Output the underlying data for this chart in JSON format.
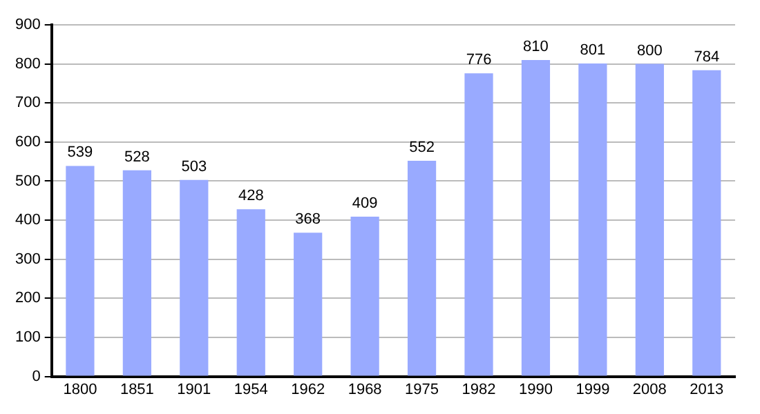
{
  "chart_data": {
    "type": "bar",
    "categories": [
      "1800",
      "1851",
      "1901",
      "1954",
      "1962",
      "1968",
      "1975",
      "1982",
      "1990",
      "1999",
      "2008",
      "2013"
    ],
    "values": [
      539,
      528,
      503,
      428,
      368,
      409,
      552,
      776,
      810,
      801,
      800,
      784
    ],
    "color": "#99aaff",
    "ylim": [
      0,
      900
    ],
    "yticks": [
      0,
      100,
      200,
      300,
      400,
      500,
      600,
      700,
      800,
      900
    ],
    "grid": "y",
    "data_labels": true
  }
}
